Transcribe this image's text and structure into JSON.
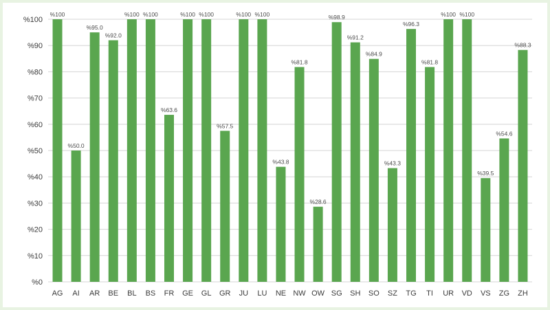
{
  "chart_data": {
    "type": "bar",
    "title": "",
    "xlabel": "",
    "ylabel": "",
    "ylim": [
      0,
      100
    ],
    "yticks": [
      0,
      10,
      20,
      30,
      40,
      50,
      60,
      70,
      80,
      90,
      100
    ],
    "ytick_labels": [
      "%0",
      "%10",
      "%20",
      "%30",
      "%40",
      "%50",
      "%60",
      "%70",
      "%80",
      "%90",
      "%100"
    ],
    "grid": "horizontal",
    "bar_color": "#5aa64f",
    "categories": [
      "AG",
      "AI",
      "AR",
      "BE",
      "BL",
      "BS",
      "FR",
      "GE",
      "GL",
      "GR",
      "JU",
      "LU",
      "NE",
      "NW",
      "OW",
      "SG",
      "SH",
      "SO",
      "SZ",
      "TG",
      "TI",
      "UR",
      "VD",
      "VS",
      "ZG",
      "ZH"
    ],
    "values": [
      100,
      50.0,
      95.0,
      92.0,
      100,
      100,
      63.6,
      100,
      100,
      57.5,
      100,
      100,
      43.8,
      81.8,
      28.6,
      98.9,
      91.2,
      84.9,
      43.3,
      96.3,
      81.8,
      100,
      100,
      39.5,
      54.6,
      88.3
    ],
    "data_labels": [
      "%100",
      "%50.0",
      "%95.0",
      "%92.0",
      "%100",
      "%100",
      "%63.6",
      "%100",
      "%100",
      "%57.5",
      "%100",
      "%100",
      "%43.8",
      "%81.8",
      "%28.6",
      "%98.9",
      "%91.2",
      "%84.9",
      "%43.3",
      "%96.3",
      "%81.8",
      "%100",
      "%100",
      "%39.5",
      "%54.6",
      "%88.3"
    ]
  }
}
